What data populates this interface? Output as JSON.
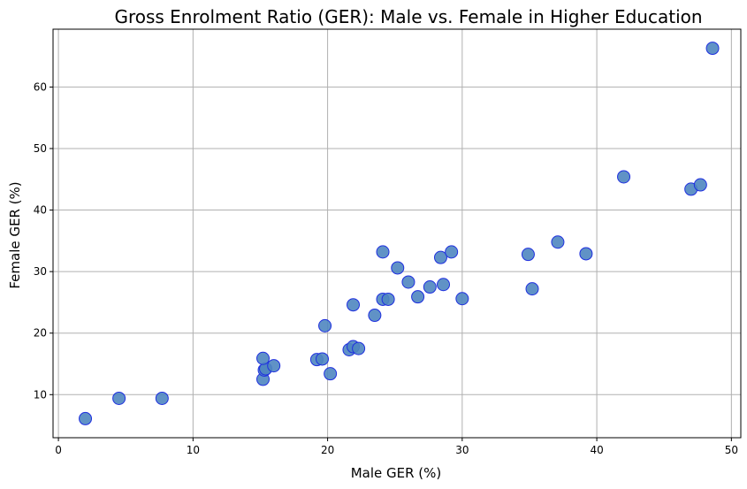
{
  "chart_data": {
    "type": "scatter",
    "title": "Gross Enrolment Ratio (GER): Male vs. Female in Higher Education",
    "xlabel": "Male GER (%)",
    "ylabel": "Female GER (%)",
    "xlim": [
      -0.4,
      50.7
    ],
    "ylim": [
      3.0,
      69.4
    ],
    "xticks": [
      0,
      10,
      20,
      30,
      40,
      50
    ],
    "yticks": [
      10,
      20,
      30,
      40,
      50,
      60
    ],
    "grid": true,
    "marker_fill": "#4f86c0",
    "marker_edge": "#1f2fe0",
    "gridline_color": "#b0b0b0",
    "points": [
      {
        "x": 2.0,
        "y": 6.1
      },
      {
        "x": 4.5,
        "y": 9.4
      },
      {
        "x": 7.7,
        "y": 9.4
      },
      {
        "x": 15.2,
        "y": 12.5
      },
      {
        "x": 15.3,
        "y": 14.0
      },
      {
        "x": 15.4,
        "y": 14.2
      },
      {
        "x": 15.2,
        "y": 15.9
      },
      {
        "x": 16.0,
        "y": 14.7
      },
      {
        "x": 19.2,
        "y": 15.7
      },
      {
        "x": 19.6,
        "y": 15.8
      },
      {
        "x": 20.2,
        "y": 13.4
      },
      {
        "x": 19.8,
        "y": 21.2
      },
      {
        "x": 21.6,
        "y": 17.3
      },
      {
        "x": 21.9,
        "y": 17.8
      },
      {
        "x": 22.3,
        "y": 17.5
      },
      {
        "x": 21.9,
        "y": 24.6
      },
      {
        "x": 23.5,
        "y": 22.9
      },
      {
        "x": 24.1,
        "y": 25.5
      },
      {
        "x": 24.5,
        "y": 25.5
      },
      {
        "x": 24.1,
        "y": 33.2
      },
      {
        "x": 25.2,
        "y": 30.6
      },
      {
        "x": 26.0,
        "y": 28.3
      },
      {
        "x": 26.7,
        "y": 25.9
      },
      {
        "x": 27.6,
        "y": 27.5
      },
      {
        "x": 28.6,
        "y": 27.9
      },
      {
        "x": 28.4,
        "y": 32.3
      },
      {
        "x": 29.2,
        "y": 33.2
      },
      {
        "x": 30.0,
        "y": 25.6
      },
      {
        "x": 34.9,
        "y": 32.8
      },
      {
        "x": 35.2,
        "y": 27.2
      },
      {
        "x": 37.1,
        "y": 34.8
      },
      {
        "x": 39.2,
        "y": 32.9
      },
      {
        "x": 42.0,
        "y": 45.4
      },
      {
        "x": 47.0,
        "y": 43.4
      },
      {
        "x": 47.7,
        "y": 44.1
      },
      {
        "x": 48.6,
        "y": 66.3
      }
    ]
  }
}
